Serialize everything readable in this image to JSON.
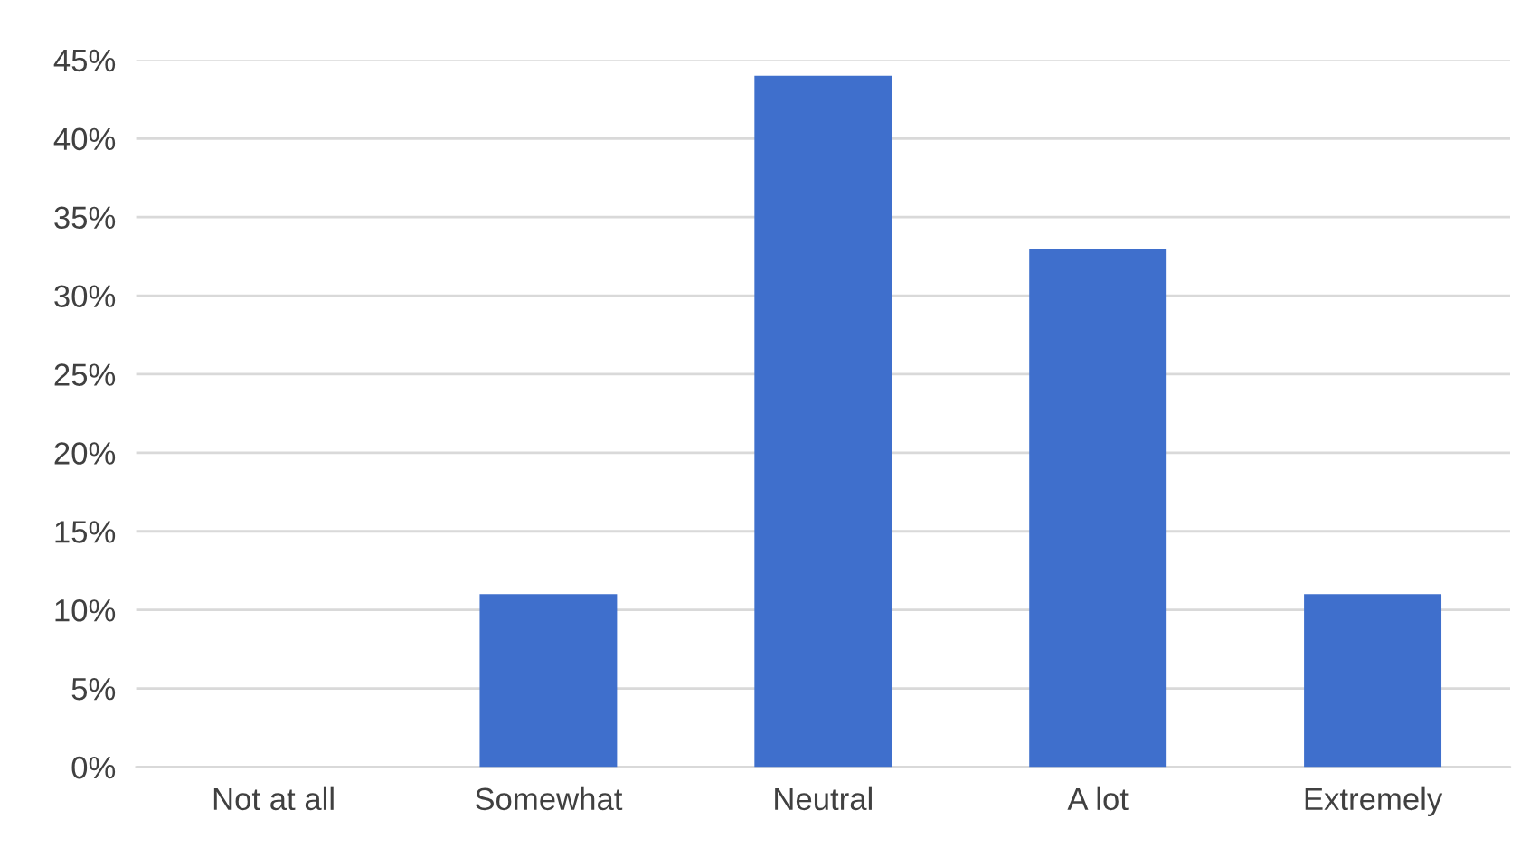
{
  "chart_data": {
    "type": "bar",
    "categories": [
      "Not at all",
      "Somewhat",
      "Neutral",
      "A lot",
      "Extremely"
    ],
    "values": [
      0,
      11,
      44,
      33,
      11
    ],
    "color": "#3f6fcc",
    "ylim": [
      0,
      45
    ],
    "yticks": [
      {
        "value": 0,
        "label": "0%"
      },
      {
        "value": 5,
        "label": "5%"
      },
      {
        "value": 10,
        "label": "10%"
      },
      {
        "value": 15,
        "label": "15%"
      },
      {
        "value": 20,
        "label": "20%"
      },
      {
        "value": 25,
        "label": "25%"
      },
      {
        "value": 30,
        "label": "30%"
      },
      {
        "value": 35,
        "label": "35%"
      },
      {
        "value": 40,
        "label": "40%"
      },
      {
        "value": 45,
        "label": "45%"
      }
    ],
    "grid": "y"
  }
}
